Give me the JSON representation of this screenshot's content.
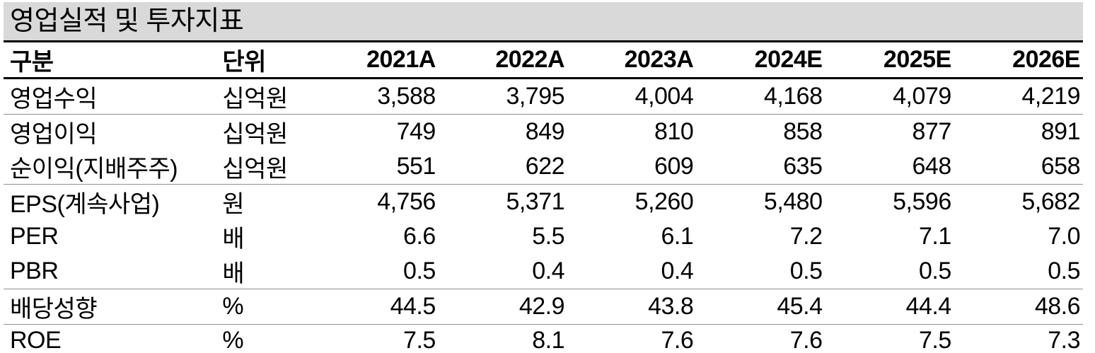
{
  "title": "영업실적 및 투자지표",
  "table": {
    "columns": [
      "구분",
      "단위",
      "2021A",
      "2022A",
      "2023A",
      "2024E",
      "2025E",
      "2026E"
    ],
    "rows": [
      {
        "label": "영업수익",
        "unit": "십억원",
        "values": [
          "3,588",
          "3,795",
          "4,004",
          "4,168",
          "4,079",
          "4,219"
        ]
      },
      {
        "label": "영업이익",
        "unit": "십억원",
        "values": [
          "749",
          "849",
          "810",
          "858",
          "877",
          "891"
        ]
      },
      {
        "label": "순이익(지배주주)",
        "unit": "십억원",
        "values": [
          "551",
          "622",
          "609",
          "635",
          "648",
          "658"
        ]
      },
      {
        "label": "EPS(계속사업)",
        "unit": "원",
        "values": [
          "4,756",
          "5,371",
          "5,260",
          "5,480",
          "5,596",
          "5,682"
        ]
      },
      {
        "label": "PER",
        "unit": "배",
        "values": [
          "6.6",
          "5.5",
          "6.1",
          "7.2",
          "7.1",
          "7.0"
        ]
      },
      {
        "label": "PBR",
        "unit": "배",
        "values": [
          "0.5",
          "0.4",
          "0.4",
          "0.5",
          "0.5",
          "0.5"
        ]
      },
      {
        "label": "배당성향",
        "unit": "%",
        "values": [
          "44.5",
          "42.9",
          "43.8",
          "45.4",
          "44.4",
          "48.6"
        ]
      },
      {
        "label": "ROE",
        "unit": "%",
        "values": [
          "7.5",
          "8.1",
          "7.6",
          "7.6",
          "7.5",
          "7.3"
        ]
      }
    ],
    "group_separators_after_row_index": [
      0,
      2,
      5,
      6
    ]
  },
  "colors": {
    "title_bar_bg": "#d9d9d9",
    "text": "#000000",
    "thick_rule": "#000000",
    "thin_rule": "#8f8f8f",
    "background": "#ffffff"
  }
}
